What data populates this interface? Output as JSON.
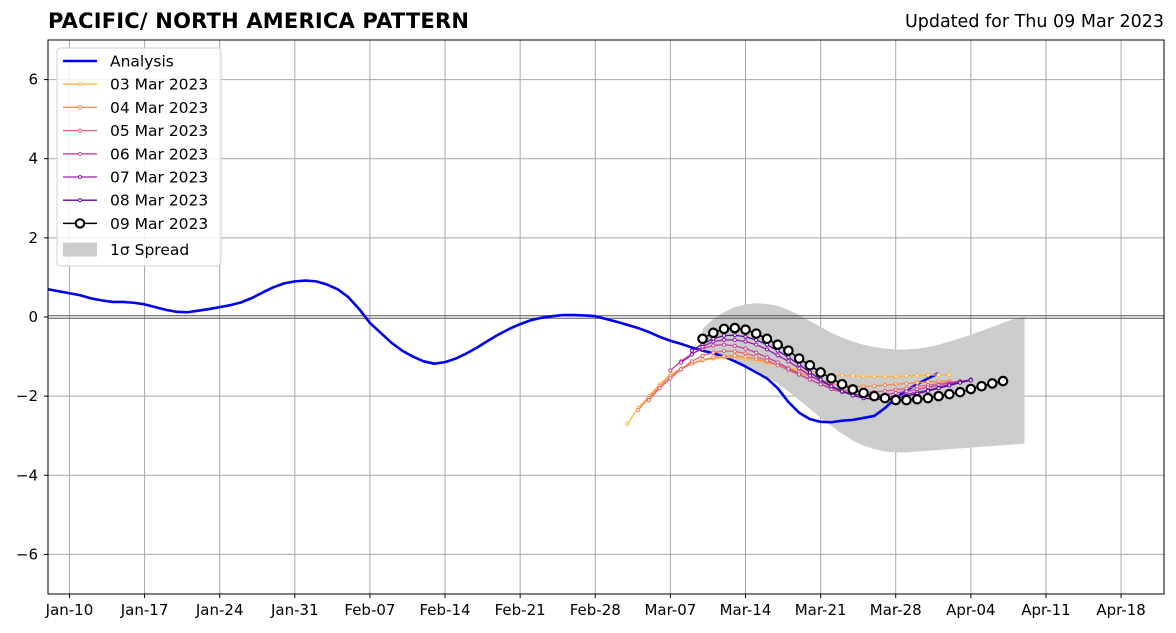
{
  "header": {
    "title": "PACIFIC/ NORTH AMERICA PATTERN",
    "updated": "Updated for Thu 09 Mar 2023"
  },
  "chart_data": {
    "type": "line",
    "title": "PACIFIC/ NORTH AMERICA PATTERN",
    "subtitle": "Updated for Thu 09 Mar 2023",
    "xlabel": "",
    "ylabel": "",
    "xlim": [
      "2023-01-08",
      "2023-04-22"
    ],
    "ylim": [
      -7,
      7
    ],
    "grid": true,
    "legend_position": "top-left",
    "x_ticks": [
      "Jan-10",
      "Jan-17",
      "Jan-24",
      "Jan-31",
      "Feb-07",
      "Feb-14",
      "Feb-21",
      "Feb-28",
      "Mar-07",
      "Mar-14",
      "Mar-21",
      "Mar-28",
      "Apr-04",
      "Apr-11",
      "Apr-18"
    ],
    "x_tick_dates": [
      "2023-01-10",
      "2023-01-17",
      "2023-01-24",
      "2023-01-31",
      "2023-02-07",
      "2023-02-14",
      "2023-02-21",
      "2023-02-28",
      "2023-03-07",
      "2023-03-14",
      "2023-03-21",
      "2023-03-28",
      "2023-04-04",
      "2023-04-11",
      "2023-04-18"
    ],
    "y_ticks": [
      -6,
      -4,
      -2,
      0,
      2,
      4,
      6
    ],
    "y_tick_labels": [
      "−6",
      "−4",
      "−2",
      "0",
      "2",
      "4",
      "6"
    ],
    "analysis": {
      "name": "Analysis",
      "color": "#0000ee",
      "start_date": "2023-01-08",
      "values": [
        0.7,
        0.65,
        0.6,
        0.55,
        0.47,
        0.42,
        0.38,
        0.38,
        0.36,
        0.32,
        0.25,
        0.18,
        0.13,
        0.12,
        0.16,
        0.2,
        0.25,
        0.3,
        0.37,
        0.48,
        0.62,
        0.75,
        0.85,
        0.9,
        0.92,
        0.9,
        0.82,
        0.7,
        0.5,
        0.2,
        -0.15,
        -0.4,
        -0.65,
        -0.85,
        -1.0,
        -1.12,
        -1.18,
        -1.14,
        -1.05,
        -0.92,
        -0.77,
        -0.6,
        -0.44,
        -0.3,
        -0.18,
        -0.08,
        -0.02,
        0.02,
        0.05,
        0.05,
        0.04,
        0.02,
        -0.05,
        -0.12,
        -0.2,
        -0.28,
        -0.38,
        -0.5,
        -0.6,
        -0.68,
        -0.77,
        -0.85,
        -0.92,
        -1.0,
        -1.12,
        -1.25,
        -1.4,
        -1.55,
        -1.8,
        -2.15,
        -2.42,
        -2.58,
        -2.65,
        -2.66,
        -2.62,
        -2.6,
        -2.55,
        -2.5,
        -2.3,
        -2.05,
        -1.85,
        -1.7,
        -1.55,
        -1.42
      ]
    },
    "forecasts": [
      {
        "name": "03 Mar 2023",
        "color": "#ffb347",
        "start_date": "2023-03-03",
        "values": [
          -2.7,
          -2.3,
          -2.0,
          -1.7,
          -1.45,
          -1.3,
          -1.18,
          -1.1,
          -1.05,
          -1.02,
          -1.03,
          -1.06,
          -1.1,
          -1.16,
          -1.22,
          -1.28,
          -1.34,
          -1.39,
          -1.43,
          -1.46,
          -1.48,
          -1.49,
          -1.5,
          -1.5,
          -1.5,
          -1.5,
          -1.49,
          -1.48,
          -1.47,
          -1.46,
          -1.46
        ]
      },
      {
        "name": "04 Mar 2023",
        "color": "#f4884b",
        "start_date": "2023-03-04",
        "values": [
          -2.35,
          -2.05,
          -1.75,
          -1.5,
          -1.32,
          -1.18,
          -1.08,
          -1.02,
          -0.99,
          -0.98,
          -1.01,
          -1.06,
          -1.13,
          -1.21,
          -1.3,
          -1.4,
          -1.5,
          -1.6,
          -1.68,
          -1.73,
          -1.75,
          -1.75,
          -1.74,
          -1.72,
          -1.7,
          -1.68,
          -1.66,
          -1.64,
          -1.63,
          -1.62
        ]
      },
      {
        "name": "05 Mar 2023",
        "color": "#e5637a",
        "start_date": "2023-03-05",
        "values": [
          -2.1,
          -1.8,
          -1.55,
          -1.32,
          -1.12,
          -0.98,
          -0.9,
          -0.86,
          -0.87,
          -0.92,
          -1.0,
          -1.1,
          -1.22,
          -1.34,
          -1.46,
          -1.58,
          -1.7,
          -1.78,
          -1.85,
          -1.88,
          -1.9,
          -1.89,
          -1.87,
          -1.84,
          -1.8,
          -1.76,
          -1.72,
          -1.69,
          -1.66,
          -1.63
        ]
      },
      {
        "name": "06 Mar 2023",
        "color": "#c0449a",
        "start_date": "2023-03-07",
        "values": [
          -1.35,
          -1.12,
          -0.93,
          -0.8,
          -0.72,
          -0.7,
          -0.73,
          -0.8,
          -0.9,
          -1.02,
          -1.15,
          -1.3,
          -1.45,
          -1.58,
          -1.7,
          -1.82,
          -1.9,
          -1.95,
          -1.98,
          -1.98,
          -1.96,
          -1.92,
          -1.88,
          -1.83,
          -1.78,
          -1.72,
          -1.66,
          -1.62,
          -1.6
        ]
      },
      {
        "name": "07 Mar 2023",
        "color": "#9b1faf",
        "start_date": "2023-03-08",
        "values": [
          -1.15,
          -0.95,
          -0.75,
          -0.62,
          -0.58,
          -0.58,
          -0.62,
          -0.7,
          -0.82,
          -0.97,
          -1.12,
          -1.3,
          -1.48,
          -1.62,
          -1.75,
          -1.87,
          -1.95,
          -2.0,
          -2.02,
          -2.02,
          -2.0,
          -1.96,
          -1.9,
          -1.85,
          -1.78,
          -1.7,
          -1.64,
          -1.58
        ]
      },
      {
        "name": "08 Mar 2023",
        "color": "#5a0aa0",
        "start_date": "2023-03-09",
        "values": [
          -0.85,
          -0.68,
          -0.55,
          -0.47,
          -0.46,
          -0.5,
          -0.58,
          -0.7,
          -0.85,
          -1.02,
          -1.2,
          -1.4,
          -1.58,
          -1.75,
          -1.88,
          -1.98,
          -2.05,
          -2.08,
          -2.08,
          -2.05,
          -2.0,
          -1.94,
          -1.87,
          -1.8,
          -1.73,
          -1.66,
          -1.6
        ]
      }
    ],
    "latest": {
      "name": "09 Mar 2023",
      "color": "#000000",
      "start_date": "2023-03-10",
      "values": [
        -0.55,
        -0.4,
        -0.3,
        -0.28,
        -0.32,
        -0.42,
        -0.55,
        -0.7,
        -0.85,
        -1.05,
        -1.22,
        -1.4,
        -1.55,
        -1.7,
        -1.83,
        -1.92,
        -2.0,
        -2.05,
        -2.1,
        -2.1,
        -2.08,
        -2.05,
        -2.0,
        -1.95,
        -1.9,
        -1.82,
        -1.75,
        -1.68,
        -1.62
      ]
    },
    "spread": {
      "name": "1σ Spread",
      "color": "#cccccc",
      "start_date": "2023-03-10",
      "upper": [
        -0.3,
        -0.05,
        0.12,
        0.25,
        0.32,
        0.35,
        0.33,
        0.28,
        0.18,
        0.05,
        -0.1,
        -0.25,
        -0.4,
        -0.52,
        -0.62,
        -0.7,
        -0.76,
        -0.8,
        -0.82,
        -0.82,
        -0.8,
        -0.76,
        -0.7,
        -0.62,
        -0.54,
        -0.45,
        -0.35,
        -0.25,
        -0.15,
        -0.05,
        0.0
      ],
      "lower": [
        -0.8,
        -0.9,
        -1.0,
        -1.1,
        -1.2,
        -1.35,
        -1.5,
        -1.68,
        -1.88,
        -2.1,
        -2.32,
        -2.55,
        -2.75,
        -2.95,
        -3.12,
        -3.25,
        -3.34,
        -3.4,
        -3.42,
        -3.42,
        -3.4,
        -3.38,
        -3.36,
        -3.34,
        -3.32,
        -3.3,
        -3.28,
        -3.26,
        -3.24,
        -3.22,
        -3.2
      ]
    }
  }
}
